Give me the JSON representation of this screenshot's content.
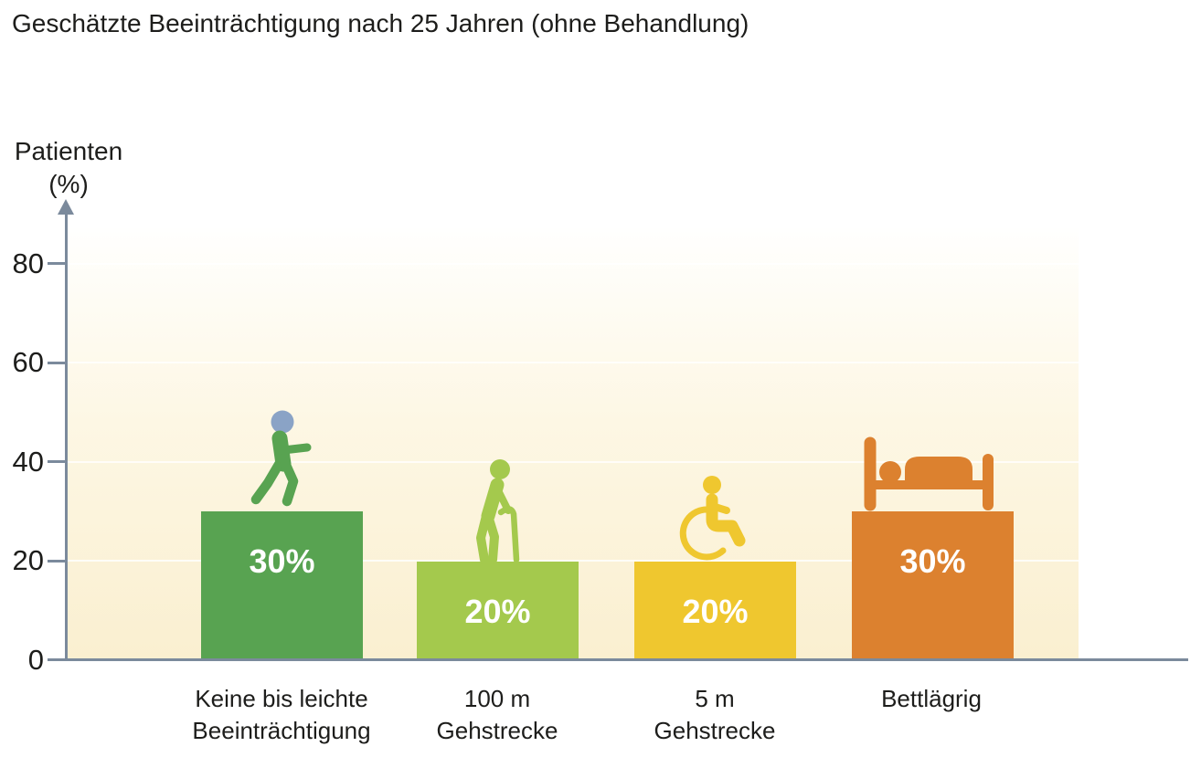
{
  "title": "Geschätzte Beeinträchtigung nach 25 Jahren (ohne Behandlung)",
  "y_axis": {
    "label_line1": "Patienten",
    "label_line2": "(%)",
    "ticks": [
      "80",
      "60",
      "40",
      "20",
      "0"
    ]
  },
  "chart_data": {
    "type": "bar",
    "title": "Geschätzte Beeinträchtigung nach 25 Jahren (ohne Behandlung)",
    "ylabel": "Patienten (%)",
    "xlabel": "",
    "categories": [
      "Keine bis leichte Beeinträchtigung",
      "100 m Gehstrecke",
      "5 m Gehstrecke",
      "Bettlägrig"
    ],
    "values": [
      30,
      20,
      20,
      30
    ],
    "value_labels": [
      "30%",
      "20%",
      "20%",
      "30%"
    ],
    "bar_colors": [
      "#58a351",
      "#a4c94d",
      "#efc72f",
      "#dc812f"
    ],
    "bar_icons": [
      "walking-person",
      "person-with-cane",
      "wheelchair-user",
      "person-in-bed"
    ],
    "ylim": [
      0,
      90
    ],
    "yticks": [
      0,
      20,
      40,
      60,
      80
    ],
    "grid": true,
    "legend": "none"
  },
  "bars": [
    {
      "cat_line1": "Keine bis leichte",
      "cat_line2": "Beeinträchtigung",
      "value_label": "30%"
    },
    {
      "cat_line1": "100 m",
      "cat_line2": "Gehstrecke",
      "value_label": "20%"
    },
    {
      "cat_line1": "5 m",
      "cat_line2": "Gehstrecke",
      "value_label": "20%"
    },
    {
      "cat_line1": "Bettlägrig",
      "cat_line2": "",
      "value_label": "30%"
    }
  ],
  "colors": {
    "axis": "#7b8a9c",
    "head_blue": "#8aa3c6",
    "text": "#1d1d1b",
    "plot_bg_top": "#fffffe",
    "plot_bg_mid": "#fdf7e4",
    "plot_bg_bottom": "#faefd0",
    "gridline": "rgba(255,255,255,0.8)",
    "bar_label_text": "#ffffff"
  }
}
